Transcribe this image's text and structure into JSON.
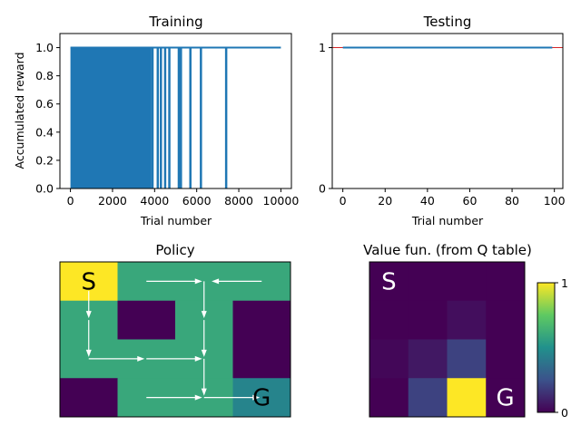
{
  "colors": {
    "train_line": "#1f77b4",
    "test_line": "#1f77b4",
    "test_ref": "#d62728",
    "arrow": "#ffffff",
    "viridis": [
      "#440154",
      "#3b528b",
      "#21918c",
      "#5ec962",
      "#fde725"
    ]
  },
  "chart_data": [
    {
      "type": "line",
      "title": "Training",
      "xlabel": "Trial number",
      "ylabel": "Accumulated reward",
      "xlim": [
        -500,
        10500
      ],
      "ylim": [
        0,
        1.1
      ],
      "xticks": [
        0,
        2000,
        4000,
        6000,
        8000,
        10000
      ],
      "yticks": [
        0.0,
        0.2,
        0.4,
        0.6,
        0.8,
        1.0
      ],
      "ytick_labels": [
        "0.0",
        "0.2",
        "0.4",
        "0.6",
        "0.8",
        "1.0"
      ],
      "dense_zero_reward_until": 3850,
      "zero_reward_trials": [
        3900,
        4150,
        4300,
        4500,
        4700,
        5150,
        5250,
        5700,
        6200,
        7400
      ],
      "final_reward": 1.0,
      "n_trials": 10000,
      "grid": false
    },
    {
      "type": "line",
      "title": "Testing",
      "xlabel": "Trial number",
      "ylabel": "",
      "xlim": [
        -5,
        104
      ],
      "ylim": [
        0,
        1.1
      ],
      "xticks": [
        0,
        20,
        40,
        60,
        80,
        100
      ],
      "yticks": [
        0,
        1
      ],
      "ytick_labels": [
        "0",
        "1"
      ],
      "series": [
        {
          "x": [
            0,
            99
          ],
          "values": [
            1,
            1
          ]
        }
      ],
      "reference_line": 1,
      "grid": false
    },
    {
      "type": "heatmap",
      "title": "Policy",
      "rows": 4,
      "cols": 4,
      "values": [
        [
          1.0,
          0.6,
          0.6,
          0.6
        ],
        [
          0.6,
          0.0,
          0.6,
          0.0
        ],
        [
          0.6,
          0.6,
          0.6,
          0.0
        ],
        [
          0.0,
          0.6,
          0.6,
          0.45
        ]
      ],
      "labels": [
        {
          "row": 0,
          "col": 0,
          "text": "S",
          "color": "#000000"
        },
        {
          "row": 3,
          "col": 3,
          "text": "G",
          "color": "#000000"
        }
      ],
      "arrows": [
        {
          "from": [
            0.5,
            0.5
          ],
          "to": [
            1.5,
            0.5
          ]
        },
        {
          "from": [
            1.5,
            0.5
          ],
          "to": [
            2.5,
            0.5
          ]
        },
        {
          "from": [
            2.5,
            0.5
          ],
          "to": [
            1.5,
            0.5
          ]
        },
        {
          "from": [
            2.5,
            0.5
          ],
          "to": [
            3.5,
            0.5
          ]
        },
        {
          "from": [
            3.5,
            0.5
          ],
          "to": [
            2.5,
            0.5
          ]
        },
        {
          "from": [
            0.5,
            1.5
          ],
          "to": [
            0.5,
            2.5
          ]
        },
        {
          "from": [
            2.5,
            1.5
          ],
          "to": [
            2.5,
            2.5
          ]
        },
        {
          "from": [
            0.5,
            2.5
          ],
          "to": [
            1.5,
            2.5
          ]
        },
        {
          "from": [
            1.5,
            2.5
          ],
          "to": [
            2.5,
            2.5
          ]
        },
        {
          "from": [
            2.5,
            2.5
          ],
          "to": [
            2.5,
            3.5
          ]
        },
        {
          "from": [
            1.5,
            3.5
          ],
          "to": [
            2.5,
            3.5
          ]
        },
        {
          "from": [
            2.5,
            3.5
          ],
          "to": [
            3.5,
            3.5
          ]
        }
      ],
      "arrow_paths": [
        [
          [
            0.5,
            0.5
          ],
          [
            0.5,
            1.5
          ]
        ],
        [
          [
            2.5,
            0.5
          ],
          [
            2.5,
            1.5
          ]
        ],
        [
          [
            0.5,
            1.5
          ],
          [
            0.5,
            2.5
          ]
        ],
        [
          [
            2.5,
            1.5
          ],
          [
            2.5,
            2.5
          ]
        ],
        [
          [
            2.5,
            2.5
          ],
          [
            2.5,
            3.5
          ]
        ]
      ]
    },
    {
      "type": "heatmap",
      "title": "Value fun. (from Q table)",
      "rows": 4,
      "cols": 4,
      "values": [
        [
          0.0,
          0.0,
          0.0,
          0.0
        ],
        [
          0.0,
          0.0,
          0.04,
          0.0
        ],
        [
          0.02,
          0.07,
          0.2,
          0.0
        ],
        [
          0.0,
          0.2,
          1.0,
          0.0
        ]
      ],
      "labels": [
        {
          "row": 0,
          "col": 0,
          "text": "S",
          "color": "#ffffff"
        },
        {
          "row": 3,
          "col": 3,
          "text": "G",
          "color": "#ffffff"
        }
      ],
      "colorbar": {
        "min": 0,
        "max": 1,
        "tick_labels": [
          "0",
          "1"
        ]
      }
    }
  ]
}
